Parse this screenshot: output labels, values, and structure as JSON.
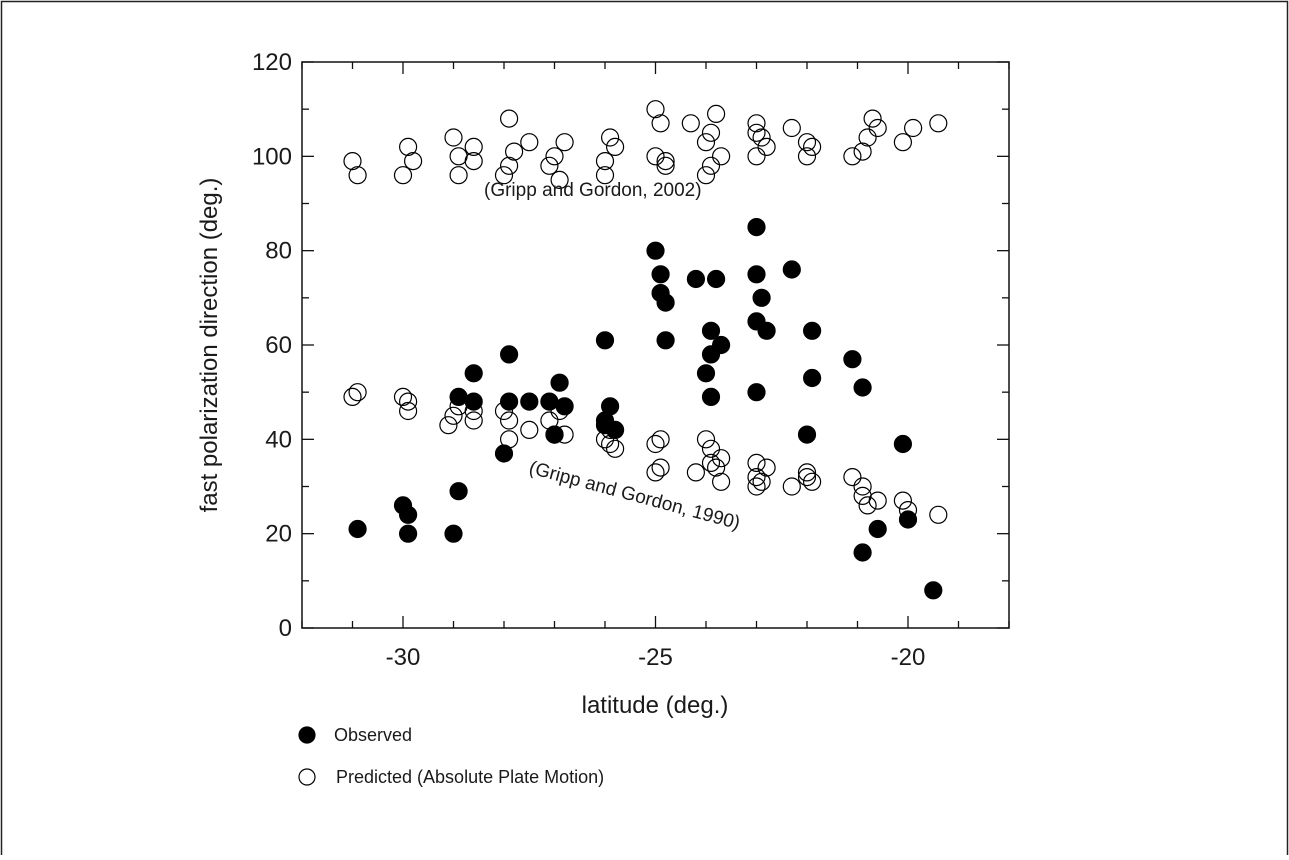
{
  "chart_data": {
    "type": "scatter",
    "title": "",
    "xlabel": "latitude (deg.)",
    "ylabel": "fast polarization direction (deg.)",
    "xlim": [
      -32,
      -18
    ],
    "ylim": [
      0,
      120
    ],
    "x_ticks": [
      -30,
      -25,
      -20
    ],
    "x_tick_labels": [
      "-30",
      "-25",
      "-20"
    ],
    "y_ticks": [
      0,
      20,
      40,
      60,
      80,
      100,
      120
    ],
    "y_tick_labels": [
      "0",
      "20",
      "40",
      "60",
      "80",
      "100",
      "120"
    ],
    "grid": false,
    "legend_placement": "bottom-left",
    "annotations": [
      {
        "text": "(Gripp and Gordon, 2002)"
      },
      {
        "text": "(Gripp and Gordon, 1990)"
      }
    ],
    "series": [
      {
        "name": "Observed",
        "marker": "filled-circle",
        "color": "#000000",
        "points": [
          [
            -30.9,
            21
          ],
          [
            -30.0,
            26
          ],
          [
            -29.9,
            24
          ],
          [
            -29.9,
            20
          ],
          [
            -29.0,
            20
          ],
          [
            -28.9,
            29
          ],
          [
            -28.9,
            49
          ],
          [
            -28.6,
            54
          ],
          [
            -28.6,
            48
          ],
          [
            -27.9,
            58
          ],
          [
            -27.9,
            48
          ],
          [
            -28.0,
            37
          ],
          [
            -27.5,
            48
          ],
          [
            -27.1,
            48
          ],
          [
            -26.9,
            52
          ],
          [
            -26.8,
            47
          ],
          [
            -27.0,
            41
          ],
          [
            -26.0,
            61
          ],
          [
            -25.9,
            47
          ],
          [
            -26.0,
            44
          ],
          [
            -26.0,
            43
          ],
          [
            -25.8,
            42
          ],
          [
            -25.0,
            80
          ],
          [
            -24.9,
            75
          ],
          [
            -24.9,
            71
          ],
          [
            -24.8,
            69
          ],
          [
            -24.8,
            61
          ],
          [
            -24.2,
            74
          ],
          [
            -23.8,
            74
          ],
          [
            -23.9,
            63
          ],
          [
            -23.7,
            60
          ],
          [
            -23.9,
            58
          ],
          [
            -24.0,
            54
          ],
          [
            -23.9,
            49
          ],
          [
            -23.0,
            85
          ],
          [
            -23.0,
            75
          ],
          [
            -22.9,
            70
          ],
          [
            -23.0,
            65
          ],
          [
            -22.8,
            63
          ],
          [
            -23.0,
            50
          ],
          [
            -22.3,
            76
          ],
          [
            -21.9,
            63
          ],
          [
            -21.9,
            53
          ],
          [
            -22.0,
            41
          ],
          [
            -21.1,
            57
          ],
          [
            -20.9,
            51
          ],
          [
            -20.9,
            16
          ],
          [
            -20.6,
            21
          ],
          [
            -20.1,
            39
          ],
          [
            -20.0,
            23
          ],
          [
            -19.5,
            8
          ]
        ]
      },
      {
        "name": "Predicted (Absolute Plate Motion)",
        "marker": "open-circle",
        "color": "#000000",
        "points": [
          [
            -31.0,
            99
          ],
          [
            -30.9,
            96
          ],
          [
            -30.0,
            96
          ],
          [
            -29.9,
            102
          ],
          [
            -29.8,
            99
          ],
          [
            -29.0,
            104
          ],
          [
            -28.9,
            100
          ],
          [
            -28.9,
            96
          ],
          [
            -28.6,
            102
          ],
          [
            -28.6,
            99
          ],
          [
            -27.9,
            108
          ],
          [
            -27.8,
            101
          ],
          [
            -27.9,
            98
          ],
          [
            -28.0,
            96
          ],
          [
            -27.5,
            103
          ],
          [
            -27.1,
            98
          ],
          [
            -27.0,
            100
          ],
          [
            -26.8,
            103
          ],
          [
            -26.9,
            95
          ],
          [
            -25.9,
            104
          ],
          [
            -25.8,
            102
          ],
          [
            -26.0,
            99
          ],
          [
            -26.0,
            96
          ],
          [
            -25.0,
            110
          ],
          [
            -24.9,
            107
          ],
          [
            -25.0,
            100
          ],
          [
            -24.8,
            99
          ],
          [
            -24.8,
            98
          ],
          [
            -24.3,
            107
          ],
          [
            -23.8,
            109
          ],
          [
            -23.9,
            105
          ],
          [
            -24.0,
            103
          ],
          [
            -23.7,
            100
          ],
          [
            -23.9,
            98
          ],
          [
            -24.0,
            96
          ],
          [
            -23.0,
            107
          ],
          [
            -23.0,
            105
          ],
          [
            -22.9,
            104
          ],
          [
            -22.8,
            102
          ],
          [
            -23.0,
            100
          ],
          [
            -22.3,
            106
          ],
          [
            -22.0,
            103
          ],
          [
            -21.9,
            102
          ],
          [
            -22.0,
            100
          ],
          [
            -21.1,
            100
          ],
          [
            -20.9,
            101
          ],
          [
            -20.8,
            104
          ],
          [
            -20.7,
            108
          ],
          [
            -20.6,
            106
          ],
          [
            -20.1,
            103
          ],
          [
            -19.9,
            106
          ],
          [
            -19.4,
            107
          ],
          [
            -31.0,
            49
          ],
          [
            -30.9,
            50
          ],
          [
            -30.0,
            49
          ],
          [
            -29.9,
            46
          ],
          [
            -29.9,
            48
          ],
          [
            -29.1,
            43
          ],
          [
            -29.0,
            45
          ],
          [
            -28.9,
            47
          ],
          [
            -28.6,
            44
          ],
          [
            -28.6,
            46
          ],
          [
            -28.0,
            46
          ],
          [
            -27.9,
            44
          ],
          [
            -27.9,
            40
          ],
          [
            -27.5,
            42
          ],
          [
            -27.1,
            44
          ],
          [
            -27.0,
            41
          ],
          [
            -26.9,
            46
          ],
          [
            -26.8,
            41
          ],
          [
            -26.0,
            40
          ],
          [
            -25.9,
            42
          ],
          [
            -25.9,
            39
          ],
          [
            -25.8,
            38
          ],
          [
            -25.0,
            39
          ],
          [
            -24.9,
            40
          ],
          [
            -24.9,
            34
          ],
          [
            -25.0,
            33
          ],
          [
            -24.2,
            33
          ],
          [
            -24.0,
            40
          ],
          [
            -23.9,
            38
          ],
          [
            -23.9,
            35
          ],
          [
            -23.8,
            34
          ],
          [
            -23.7,
            36
          ],
          [
            -23.7,
            31
          ],
          [
            -23.0,
            35
          ],
          [
            -23.0,
            32
          ],
          [
            -22.9,
            31
          ],
          [
            -22.8,
            34
          ],
          [
            -23.0,
            30
          ],
          [
            -22.3,
            30
          ],
          [
            -22.0,
            33
          ],
          [
            -21.9,
            31
          ],
          [
            -22.0,
            32
          ],
          [
            -21.1,
            32
          ],
          [
            -20.9,
            30
          ],
          [
            -20.9,
            28
          ],
          [
            -20.8,
            26
          ],
          [
            -20.6,
            27
          ],
          [
            -20.1,
            27
          ],
          [
            -20.0,
            25
          ],
          [
            -19.4,
            24
          ]
        ]
      }
    ]
  }
}
